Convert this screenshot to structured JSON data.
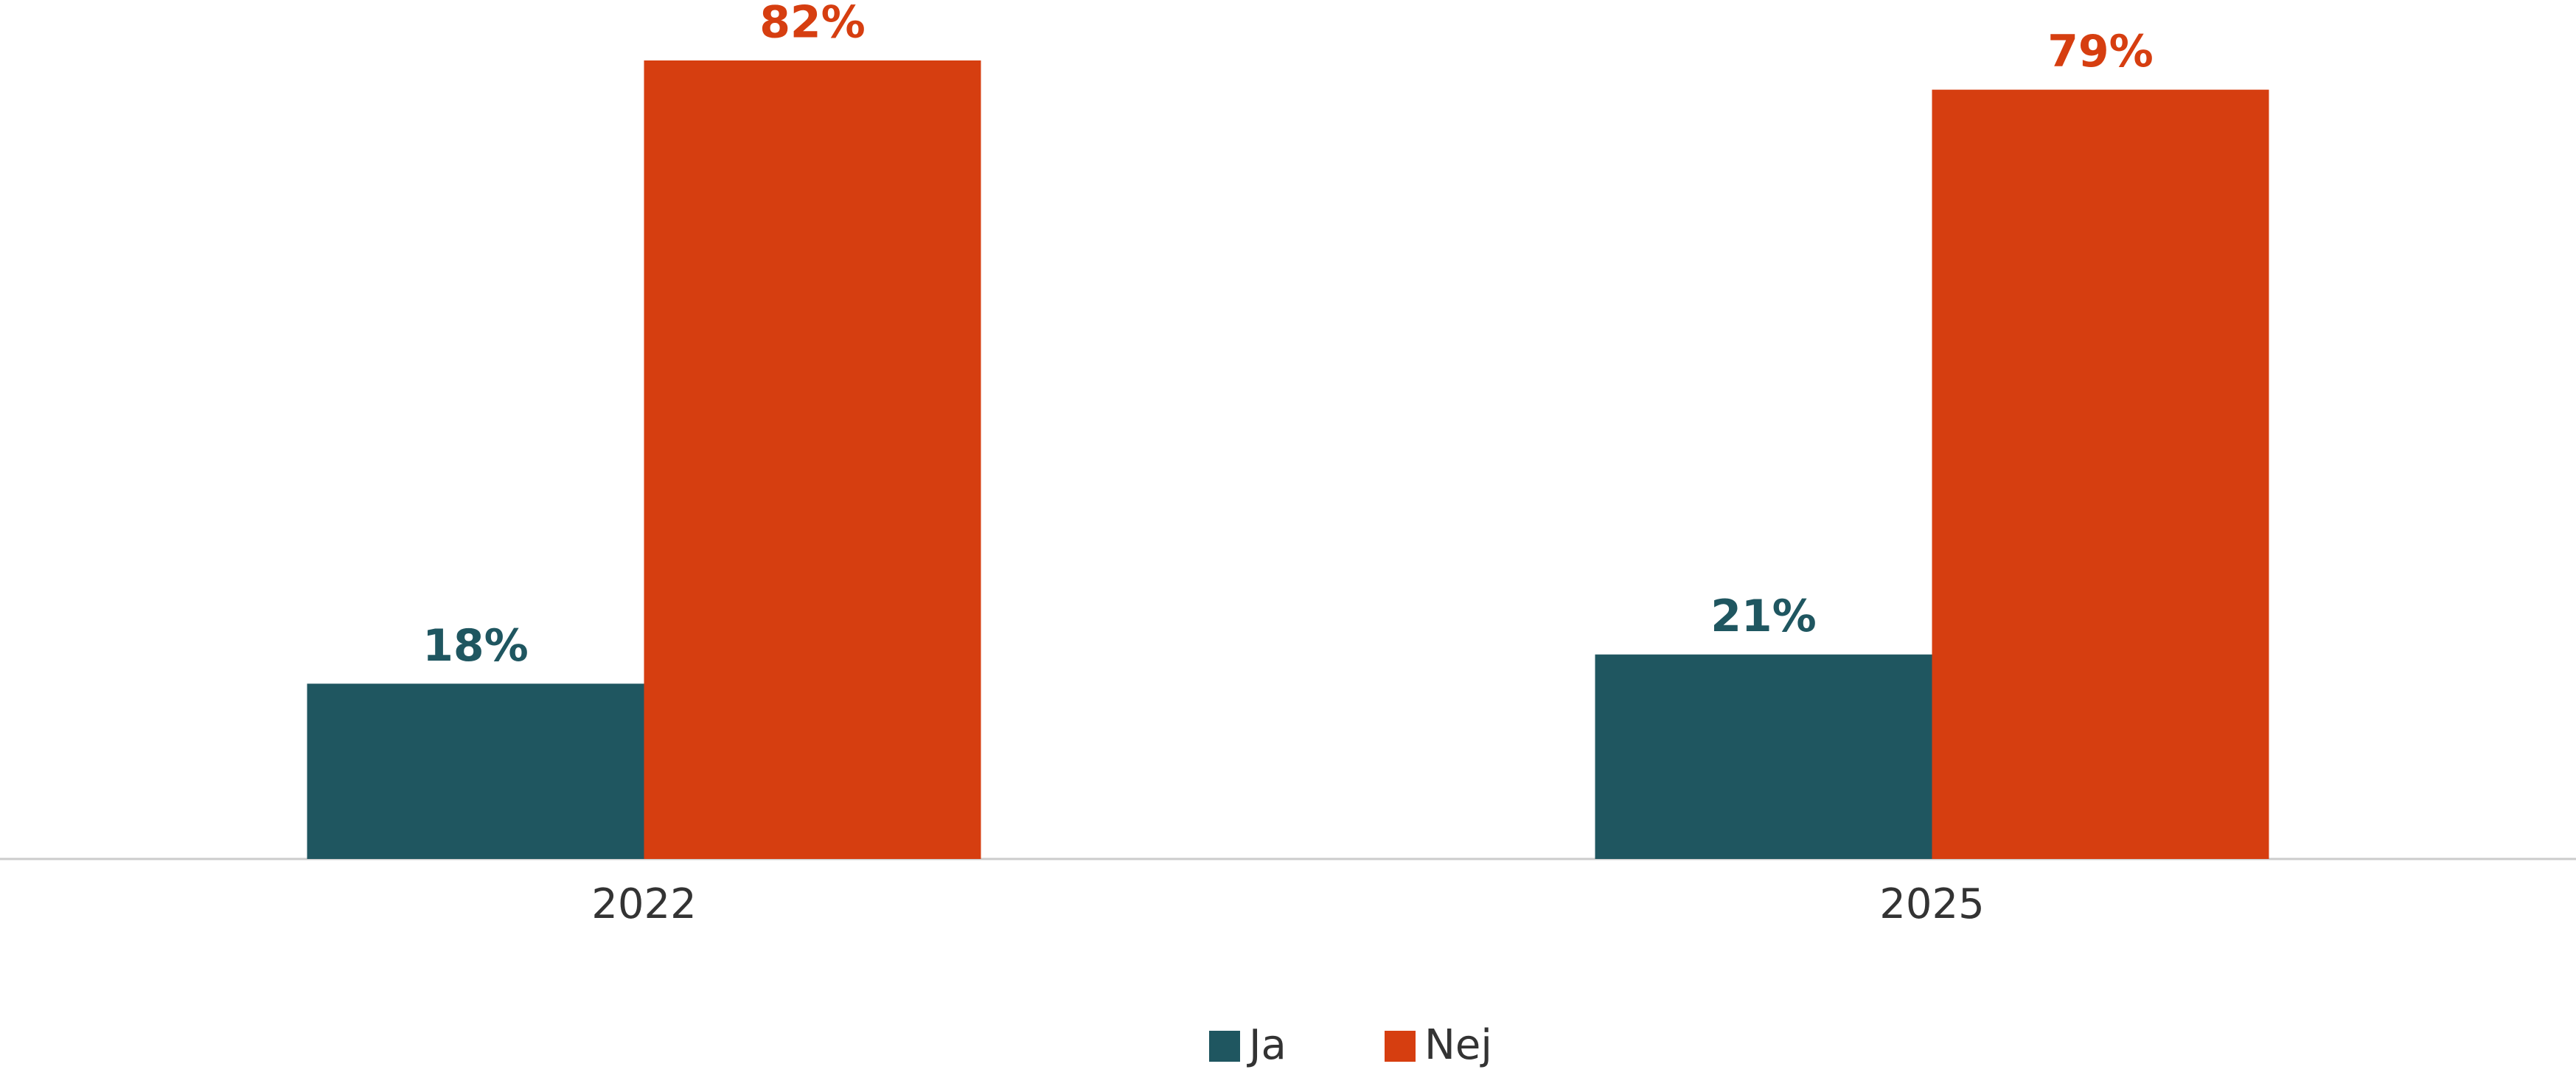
{
  "chart_data": {
    "type": "bar",
    "categories": [
      "2022",
      "2025"
    ],
    "series": [
      {
        "name": "Ja",
        "color": "#1f5660",
        "values": [
          18,
          21
        ],
        "value_labels": [
          "18%",
          "21%"
        ]
      },
      {
        "name": "Nej",
        "color": "#d63e10",
        "values": [
          82,
          79
        ],
        "value_labels": [
          "82%",
          "79%"
        ]
      }
    ],
    "legend": "bottom"
  }
}
